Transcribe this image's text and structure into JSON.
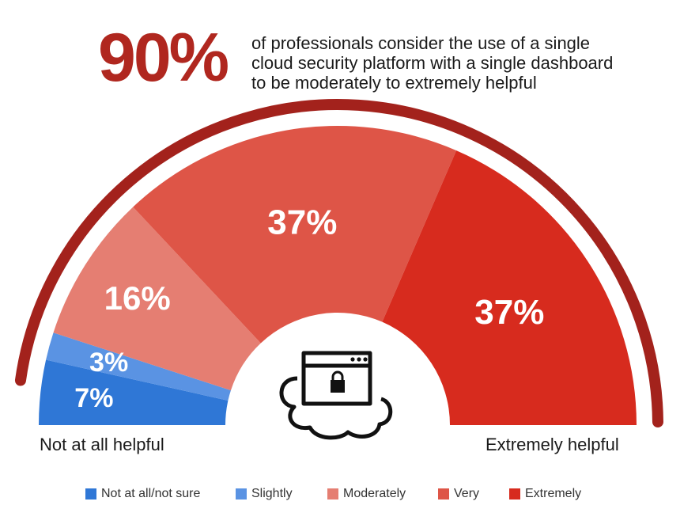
{
  "header": {
    "stat": "90%",
    "lines": [
      "of professionals consider the use of a single",
      "cloud security platform with a single dashboard",
      "to be moderately to extremely helpful"
    ]
  },
  "scale_labels": {
    "left": "Not at all helpful",
    "right": "Extremely helpful"
  },
  "colors": {
    "not_at_all": "#2f77d6",
    "slightly": "#5a93e3",
    "moderately": "#e57e72",
    "very": "#de5547",
    "extremely": "#d72b1e",
    "arc": "#a3221c"
  },
  "center_icon": "cloud-lock-browser-icon",
  "chart_data": {
    "type": "pie",
    "subtype": "half-donut",
    "series": [
      {
        "name": "Not at all/not sure",
        "value": 7,
        "label": "7%"
      },
      {
        "name": "Slightly",
        "value": 3,
        "label": "3%"
      },
      {
        "name": "Moderately",
        "value": 16,
        "label": "16%"
      },
      {
        "name": "Very",
        "value": 37,
        "label": "37%"
      },
      {
        "name": "Extremely",
        "value": 37,
        "label": "37%"
      }
    ],
    "legend": [
      "Not at all/not sure",
      "Slightly",
      "Moderately",
      "Very",
      "Extremely"
    ],
    "legend_position": "bottom"
  }
}
